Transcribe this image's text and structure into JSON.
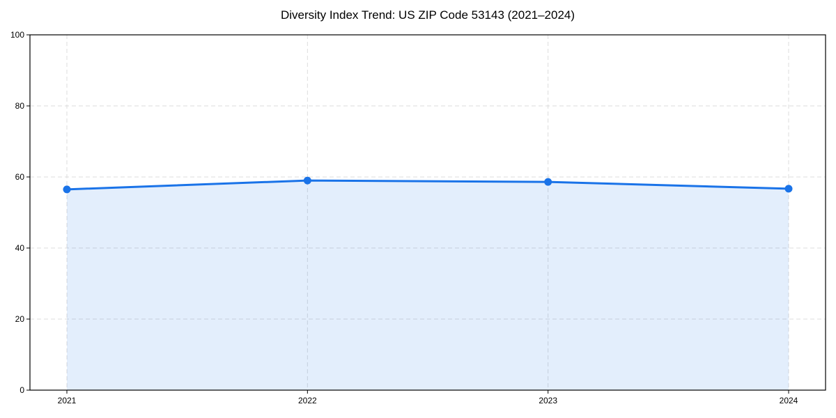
{
  "title": "Diversity Index Trend: US ZIP Code 53143 (2021–2024)",
  "colors": {
    "line": "#1a73e8",
    "marker": "#1a73e8",
    "fill": "#1a73e8",
    "fill_opacity": 0.12,
    "grid": "#dcdcdc",
    "axis": "#000000",
    "tick_text": "#000000",
    "background": "#ffffff"
  },
  "chart_data": {
    "type": "area",
    "title": "Diversity Index Trend: US ZIP Code 53143 (2021–2024)",
    "categories": [
      "2021",
      "2022",
      "2023",
      "2024"
    ],
    "x": [
      2021,
      2022,
      2023,
      2024
    ],
    "values": [
      56.5,
      59.0,
      58.6,
      56.7
    ],
    "series_label": "Diversity Index",
    "xlabel": "",
    "ylabel": "",
    "ylim": [
      0,
      100
    ],
    "yticks": [
      0,
      20,
      40,
      60,
      80,
      100
    ],
    "grid": true,
    "grid_style": "dashed",
    "legend": "none",
    "marker": "circle",
    "line_width": 3
  }
}
